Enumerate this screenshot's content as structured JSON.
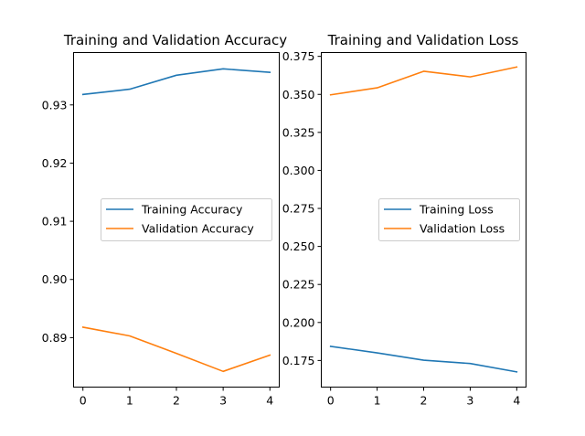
{
  "chart_data": [
    {
      "type": "line",
      "title": "Training and Validation Accuracy",
      "xlabel": "",
      "ylabel": "",
      "x": [
        0,
        1,
        2,
        3,
        4
      ],
      "xticks": [
        0,
        1,
        2,
        3,
        4
      ],
      "xlim": [
        -0.2,
        4.2
      ],
      "yticks": [
        0.89,
        0.9,
        0.91,
        0.92,
        0.93
      ],
      "ytick_labels": [
        "0.89",
        "0.90",
        "0.91",
        "0.92",
        "0.93"
      ],
      "ylim": [
        0.8815,
        0.939
      ],
      "legend": "center-right",
      "grid": false,
      "series": [
        {
          "name": "Training Accuracy",
          "color": "#1f77b4",
          "values": [
            0.9318,
            0.9327,
            0.9351,
            0.9362,
            0.9356
          ]
        },
        {
          "name": "Validation Accuracy",
          "color": "#ff7f0e",
          "values": [
            0.8918,
            0.8903,
            0.8873,
            0.8842,
            0.887
          ]
        }
      ]
    },
    {
      "type": "line",
      "title": "Training and Validation Loss",
      "xlabel": "",
      "ylabel": "",
      "x": [
        0,
        1,
        2,
        3,
        4
      ],
      "xticks": [
        0,
        1,
        2,
        3,
        4
      ],
      "xlim": [
        -0.2,
        4.2
      ],
      "yticks": [
        0.175,
        0.2,
        0.225,
        0.25,
        0.275,
        0.3,
        0.325,
        0.35,
        0.375
      ],
      "ytick_labels": [
        "0.175",
        "0.200",
        "0.225",
        "0.250",
        "0.275",
        "0.300",
        "0.325",
        "0.350",
        "0.375"
      ],
      "ylim": [
        0.1575,
        0.3775
      ],
      "legend": "center-right",
      "grid": false,
      "series": [
        {
          "name": "Training Loss",
          "color": "#1f77b4",
          "values": [
            0.1843,
            0.18,
            0.1752,
            0.173,
            0.1675
          ]
        },
        {
          "name": "Validation Loss",
          "color": "#ff7f0e",
          "values": [
            0.3497,
            0.3543,
            0.3652,
            0.3615,
            0.368
          ]
        }
      ]
    }
  ]
}
